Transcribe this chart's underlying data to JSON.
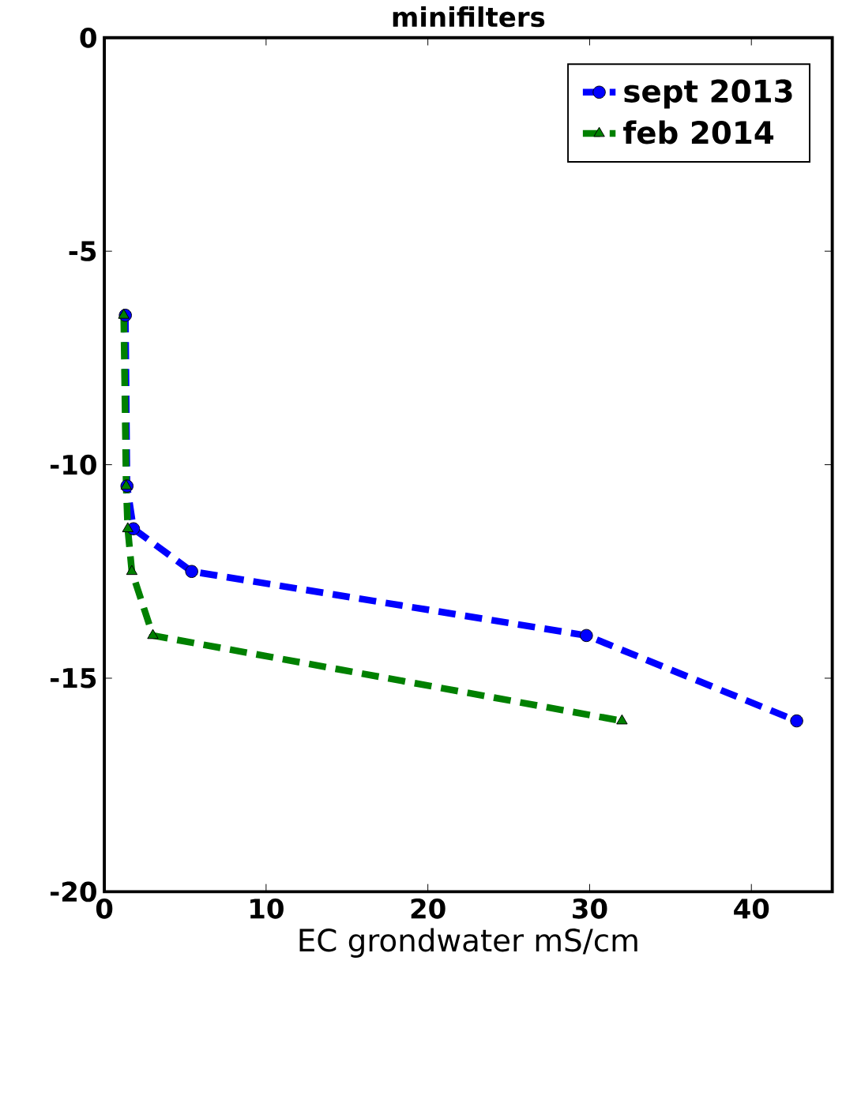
{
  "chart_data": {
    "type": "line",
    "title": "minifilters",
    "xlabel": "EC grondwater mS/cm",
    "series": [
      {
        "name": "sept 2013",
        "color": "#0000ff",
        "marker": "circle",
        "x": [
          1.3,
          1.4,
          1.8,
          5.4,
          29.8,
          42.8
        ],
        "values": [
          -6.5,
          -10.5,
          -11.5,
          -12.5,
          -14,
          -16
        ]
      },
      {
        "name": "feb 2014",
        "color": "#008000",
        "marker": "triangle",
        "x": [
          1.2,
          1.35,
          1.45,
          1.7,
          3.0,
          32
        ],
        "values": [
          -6.5,
          -10.5,
          -11.5,
          -12.5,
          -14,
          -16
        ]
      }
    ],
    "line_style": "dashed",
    "xlim": [
      0,
      45
    ],
    "ylim": [
      -20,
      0
    ],
    "xticks": [
      0,
      10,
      20,
      30,
      40
    ],
    "yticks": [
      -20,
      -15,
      -10,
      -5,
      0
    ],
    "legend": "top right",
    "grid": false
  }
}
